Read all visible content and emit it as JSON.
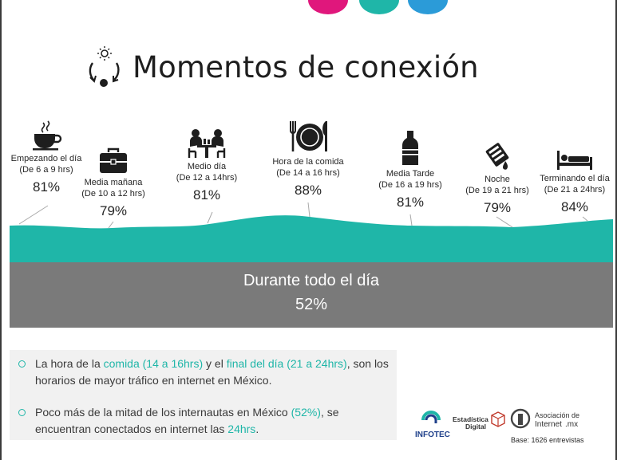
{
  "header": {
    "title": "Momentos de conexión",
    "dot_colors": [
      "#e0177c",
      "#1fb6a8",
      "#2b9bd8"
    ]
  },
  "moments": [
    {
      "icon": "coffee-cup-icon",
      "label": "Empezando el día",
      "range": "(De 6 a 9 hrs)",
      "value": "81%"
    },
    {
      "icon": "briefcase-icon",
      "label": "Media mañana",
      "range": "(De 10 a 12 hrs)",
      "value": "79%"
    },
    {
      "icon": "meeting-people-icon",
      "label": "Medio día",
      "range": "(De 12 a 14hrs)",
      "value": "81%"
    },
    {
      "icon": "plate-cutlery-icon",
      "label": "Hora de la comida",
      "range": "(De 14 a 16 hrs)",
      "value": "88%"
    },
    {
      "icon": "bottle-icon",
      "label": "Media Tarde",
      "range": "(De 16 a 19 hrs)",
      "value": "81%"
    },
    {
      "icon": "moon-cup-icon",
      "label": "Noche",
      "range": "(De 19 a 21 hrs)",
      "value": "79%"
    },
    {
      "icon": "bed-icon",
      "label": "Terminando el día",
      "range": "(De 21 a 24hrs)",
      "value": "84%"
    }
  ],
  "all_day": {
    "label": "Durante todo el día",
    "value": "52%"
  },
  "bullets": [
    {
      "parts": [
        {
          "text": "La hora de la ",
          "hl": false
        },
        {
          "text": "comida (14 a 16hrs)",
          "hl": true
        },
        {
          "text": " y el ",
          "hl": false
        },
        {
          "text": "final del día (21 a 24hrs)",
          "hl": true
        },
        {
          "text": ", son los horarios de mayor tráfico en internet en México.",
          "hl": false
        }
      ]
    },
    {
      "parts": [
        {
          "text": "Poco más de la mitad de los internautas en México ",
          "hl": false
        },
        {
          "text": "(52%)",
          "hl": true
        },
        {
          "text": ", se encuentran conectados en internet las ",
          "hl": false
        },
        {
          "text": "24hrs",
          "hl": true
        },
        {
          "text": ".",
          "hl": false
        }
      ]
    }
  ],
  "logos": {
    "infotec": "INFOTEC",
    "estadistica": "Estadística",
    "digital": "Digital",
    "asociacion": "Asociación de",
    "internet": "Internet",
    "mx": ".mx"
  },
  "base_note": "Base: 1626 entrevistas",
  "colors": {
    "teal": "#1fb6a8",
    "gray": "#7a7a7a"
  }
}
